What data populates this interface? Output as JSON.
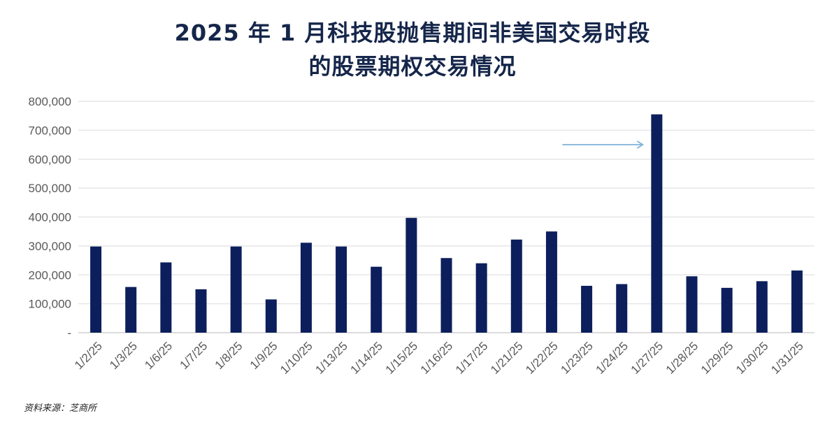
{
  "title_line1": "2025 年 1 月科技股抛售期间非美国交易时段",
  "title_line2": "的股票期权交易情况",
  "source": "资料来源：芝商所",
  "colors": {
    "bar": "#0c1f5c",
    "grid": "#e6e6e6",
    "arrow": "#7fb3d8",
    "title": "#15264a"
  },
  "chart_data": {
    "type": "bar",
    "title": "2025 年 1 月科技股抛售期间非美国交易时段的股票期权交易情况",
    "xlabel": "",
    "ylabel": "",
    "ylim": [
      0,
      800000
    ],
    "yticks": [
      0,
      100000,
      200000,
      300000,
      400000,
      500000,
      600000,
      700000,
      800000
    ],
    "ytick_labels": [
      "-",
      "100,000",
      "200,000",
      "300,000",
      "400,000",
      "500,000",
      "600,000",
      "700,000",
      "800,000"
    ],
    "categories": [
      "1/2/25",
      "1/3/25",
      "1/6/25",
      "1/7/25",
      "1/8/25",
      "1/9/25",
      "1/10/25",
      "1/13/25",
      "1/14/25",
      "1/15/25",
      "1/16/25",
      "1/17/25",
      "1/21/25",
      "1/22/25",
      "1/23/25",
      "1/24/25",
      "1/27/25",
      "1/28/25",
      "1/29/25",
      "1/30/25",
      "1/31/25"
    ],
    "values": [
      298000,
      158000,
      243000,
      150000,
      298000,
      115000,
      311000,
      298000,
      228000,
      397000,
      258000,
      240000,
      322000,
      350000,
      162000,
      168000,
      755000,
      195000,
      155000,
      178000,
      215000
    ],
    "grid": true,
    "annotations": [
      {
        "type": "arrow",
        "points_to": "1/27/25"
      }
    ]
  }
}
